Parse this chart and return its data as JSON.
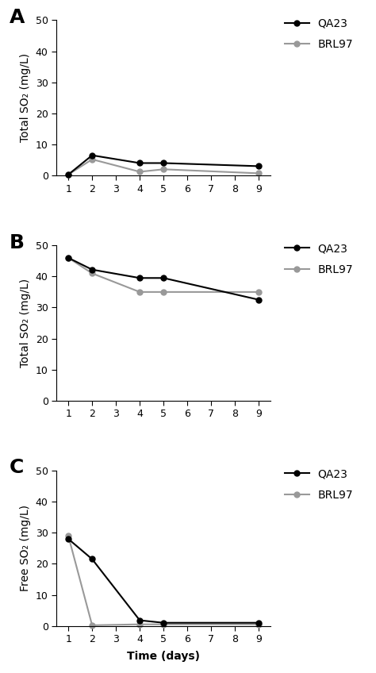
{
  "panels": [
    {
      "label": "A",
      "ylabel": "Total SO₂ (mg/L)",
      "ylim": [
        0,
        50
      ],
      "yticks": [
        0,
        10,
        20,
        30,
        40,
        50
      ],
      "QA23_x": [
        1,
        2,
        4,
        5,
        9
      ],
      "QA23_y": [
        0.3,
        6.5,
        4.0,
        4.0,
        3.0
      ],
      "BRL97_x": [
        1,
        2,
        4,
        5,
        9
      ],
      "BRL97_y": [
        0.3,
        5.2,
        1.2,
        2.0,
        0.7
      ]
    },
    {
      "label": "B",
      "ylabel": "Total SO₂ (mg/L)",
      "ylim": [
        0,
        50
      ],
      "yticks": [
        0,
        10,
        20,
        30,
        40,
        50
      ],
      "QA23_x": [
        1,
        2,
        4,
        5,
        9
      ],
      "QA23_y": [
        46.0,
        42.2,
        39.5,
        39.5,
        32.5
      ],
      "BRL97_x": [
        1,
        2,
        4,
        5,
        9
      ],
      "BRL97_y": [
        46.0,
        41.0,
        35.0,
        35.0,
        35.0
      ]
    },
    {
      "label": "C",
      "ylabel": "Free SO₂ (mg/L)",
      "ylim": [
        0,
        50
      ],
      "yticks": [
        0,
        10,
        20,
        30,
        40,
        50
      ],
      "QA23_x": [
        1,
        2,
        4,
        5,
        9
      ],
      "QA23_y": [
        28.0,
        21.5,
        1.8,
        1.0,
        1.0
      ],
      "BRL97_x": [
        1,
        2,
        4,
        5,
        9
      ],
      "BRL97_y": [
        29.0,
        0.2,
        0.5,
        0.5,
        0.5
      ]
    }
  ],
  "xlabel": "Time (days)",
  "xticks": [
    1,
    2,
    3,
    4,
    5,
    6,
    7,
    8,
    9
  ],
  "xlim": [
    0.5,
    9.5
  ],
  "color_QA23": "#000000",
  "color_BRL97": "#999999",
  "legend_labels": [
    "QA23",
    "BRL97"
  ],
  "marker": "o",
  "markersize": 5,
  "linewidth": 1.5,
  "background_color": "#ffffff",
  "label_fontsize": 18,
  "axis_fontsize": 10,
  "tick_fontsize": 9,
  "legend_fontsize": 10
}
